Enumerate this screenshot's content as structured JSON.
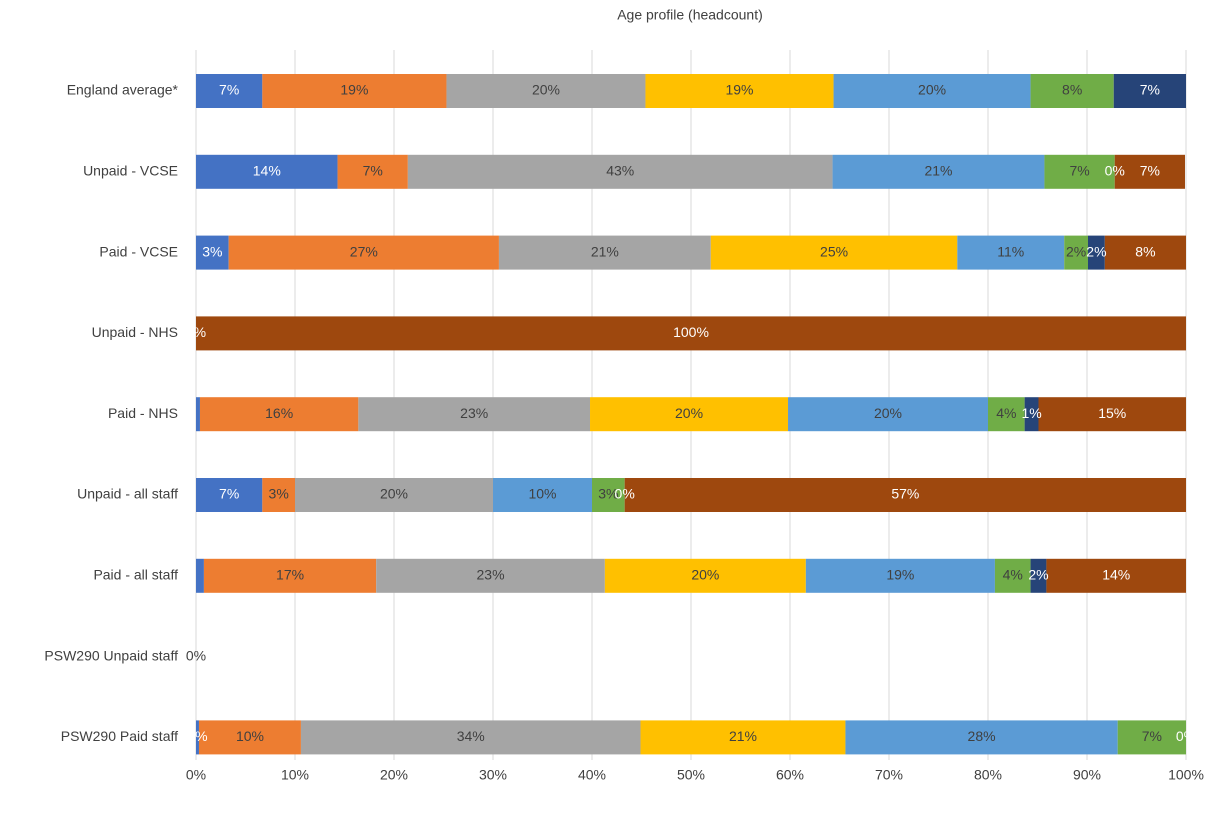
{
  "chart_data": {
    "type": "stacked_bar_horizontal",
    "title": "Age profile (headcount)",
    "categories": [
      "England average*",
      "Unpaid - VCSE",
      "Paid - VCSE",
      "Unpaid - NHS",
      "Paid - NHS",
      "Unpaid - all staff",
      "Paid - all staff",
      "PSW290 Unpaid staff",
      "PSW290 Paid staff"
    ],
    "series": [
      {
        "color": "#4472c4",
        "values": [
          6.7,
          14.3,
          3.3,
          0,
          0.4,
          6.7,
          0.8,
          0,
          0.3
        ],
        "value_labels": [
          "7%",
          "14%",
          "3%",
          "0%",
          null,
          "7%",
          null,
          "0%",
          "0%"
        ]
      },
      {
        "color": "#ed7d31",
        "values": [
          18.6,
          7.1,
          27.3,
          null,
          16.0,
          3.3,
          17.4,
          0,
          10.3
        ],
        "value_labels": [
          "19%",
          "7%",
          "27%",
          null,
          "16%",
          "3%",
          "17%",
          "0%",
          "10%"
        ]
      },
      {
        "color": "#a5a5a5",
        "values": [
          20.1,
          42.9,
          21.4,
          null,
          23.4,
          20.0,
          23.1,
          null,
          34.3
        ],
        "value_labels": [
          "20%",
          "43%",
          "21%",
          null,
          "23%",
          "20%",
          "23%",
          null,
          "34%"
        ]
      },
      {
        "color": "#ffc000",
        "values": [
          19.0,
          null,
          24.9,
          null,
          20.0,
          null,
          20.3,
          null,
          20.7
        ],
        "value_labels": [
          "19%",
          null,
          "25%",
          null,
          "20%",
          null,
          "20%",
          null,
          "21%"
        ]
      },
      {
        "color": "#5b9bd5",
        "values": [
          19.9,
          21.4,
          10.8,
          null,
          20.2,
          10.0,
          19.1,
          null,
          27.5
        ],
        "value_labels": [
          "20%",
          "21%",
          "11%",
          null,
          "20%",
          "10%",
          "19%",
          null,
          "28%"
        ]
      },
      {
        "color": "#70ad47",
        "values": [
          8.4,
          7.1,
          2.4,
          null,
          3.7,
          3.3,
          3.6,
          null,
          6.9
        ],
        "value_labels": [
          "8%",
          "7%",
          "2%",
          null,
          "4%",
          "3%",
          "4%",
          null,
          "7%"
        ]
      },
      {
        "color": "#264478",
        "values": [
          7.3,
          0,
          1.7,
          null,
          1.4,
          0,
          1.6,
          null,
          0
        ],
        "value_labels": [
          "7%",
          "0%",
          "2%",
          null,
          "1%",
          "0%",
          "2%",
          null,
          "0%"
        ]
      },
      {
        "color": "#9e480e",
        "values": [
          null,
          7.1,
          8.2,
          100,
          14.9,
          56.7,
          14.1,
          null,
          null
        ],
        "value_labels": [
          null,
          "7%",
          "8%",
          "100%",
          "15%",
          "57%",
          "14%",
          null,
          null
        ]
      }
    ],
    "xlim": [
      0,
      100
    ],
    "xticks": [
      {
        "value": 0,
        "label": "0%"
      },
      {
        "value": 10,
        "label": "10%"
      },
      {
        "value": 20,
        "label": "20%"
      },
      {
        "value": 30,
        "label": "30%"
      },
      {
        "value": 40,
        "label": "40%"
      },
      {
        "value": 50,
        "label": "50%"
      },
      {
        "value": 60,
        "label": "60%"
      },
      {
        "value": 70,
        "label": "70%"
      },
      {
        "value": 80,
        "label": "80%"
      },
      {
        "value": 90,
        "label": "90%"
      },
      {
        "value": 100,
        "label": "100%"
      }
    ],
    "grid": true
  }
}
